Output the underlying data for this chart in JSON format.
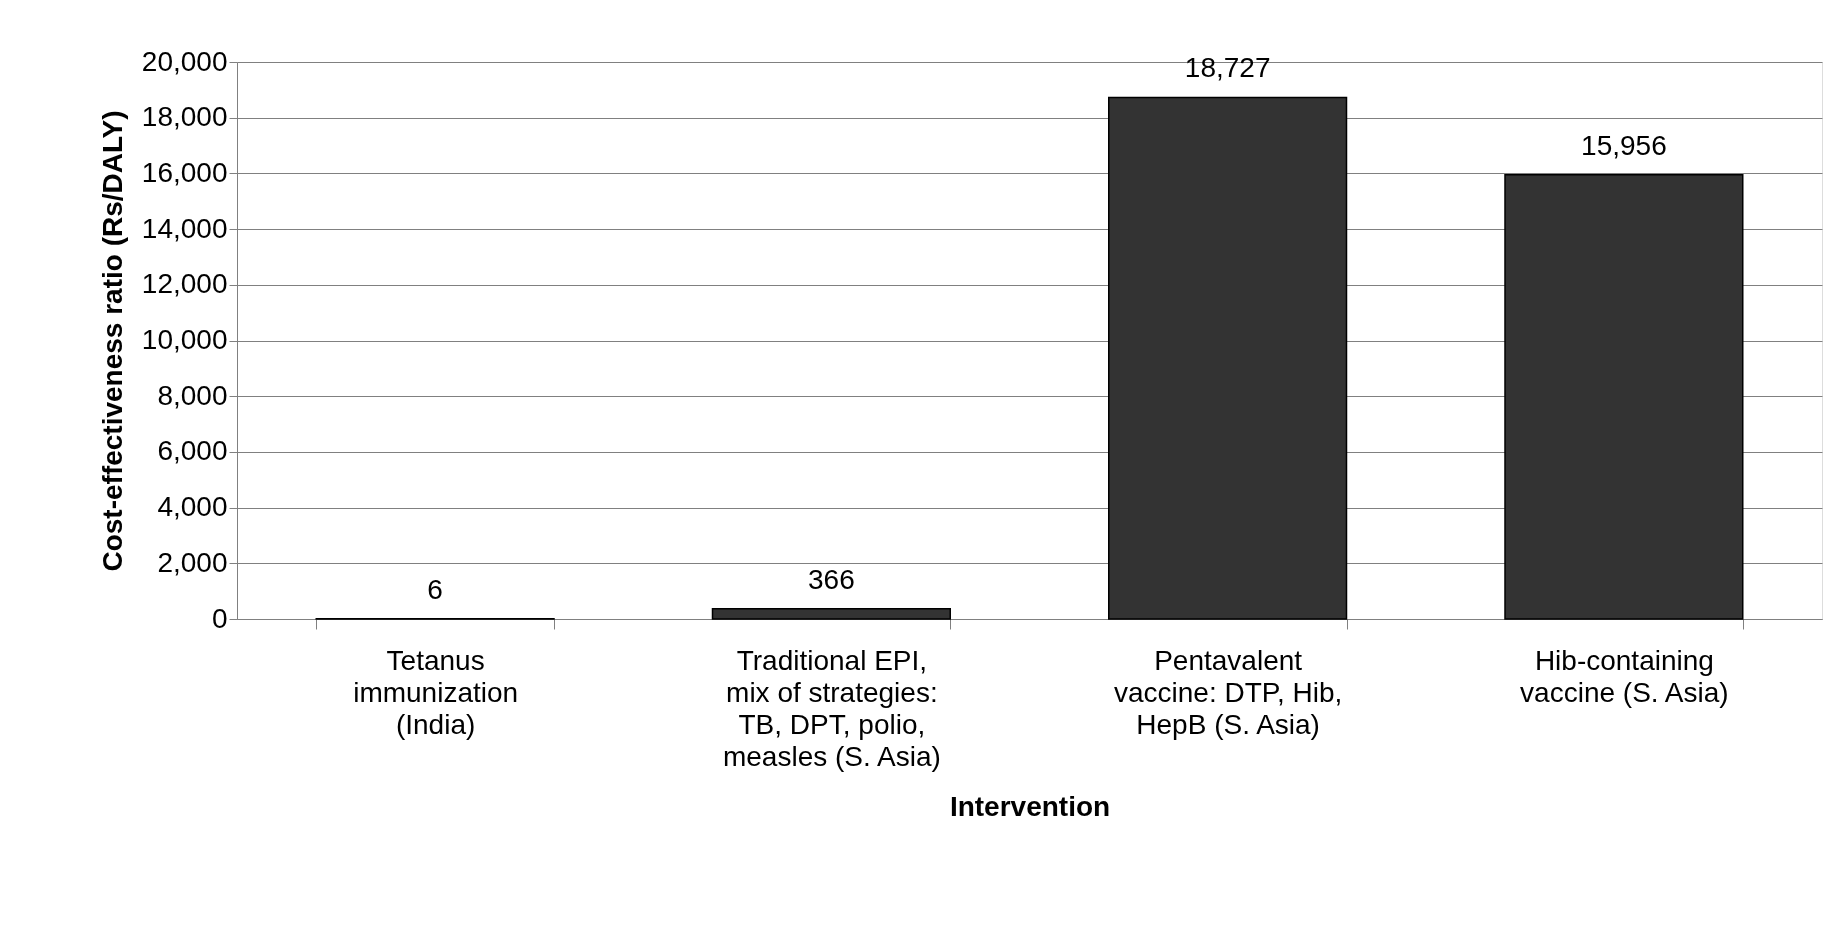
{
  "chart_data": {
    "type": "bar",
    "xlabel": "Intervention",
    "ylabel": "Cost-effectiveness ratio (Rs/DALY)",
    "categories": [
      "Tetanus\nimmunization\n(India)",
      "Traditional EPI,\nmix of strategies:\nTB, DPT, polio,\nmeasles (S. Asia)",
      "Pentavalent\nvaccine:  DTP, Hib,\nHepB (S. Asia)",
      "Hib-containing\nvaccine (S. Asia)"
    ],
    "values": [
      6,
      366,
      18727,
      15956
    ],
    "color": "#333333",
    "value_labels": [
      "6",
      "366",
      "18,727",
      "15,956"
    ],
    "ylim": [
      0,
      20000
    ],
    "yticks": [
      0,
      {
        "value": 2000,
        "label": "2,000"
      },
      {
        "value": 4000,
        "label": "4,000"
      },
      {
        "value": 6000,
        "label": "6,000"
      },
      {
        "value": 8000,
        "label": "8,000"
      },
      {
        "value": 10000,
        "label": "10,000"
      },
      {
        "value": 12000,
        "label": "12,000"
      },
      {
        "value": 14000,
        "label": "14,000"
      },
      {
        "value": 16000,
        "label": "16,000"
      },
      {
        "value": 18000,
        "label": "18,000"
      },
      {
        "value": 20000,
        "label": "20,000"
      }
    ],
    "grid": "y"
  }
}
